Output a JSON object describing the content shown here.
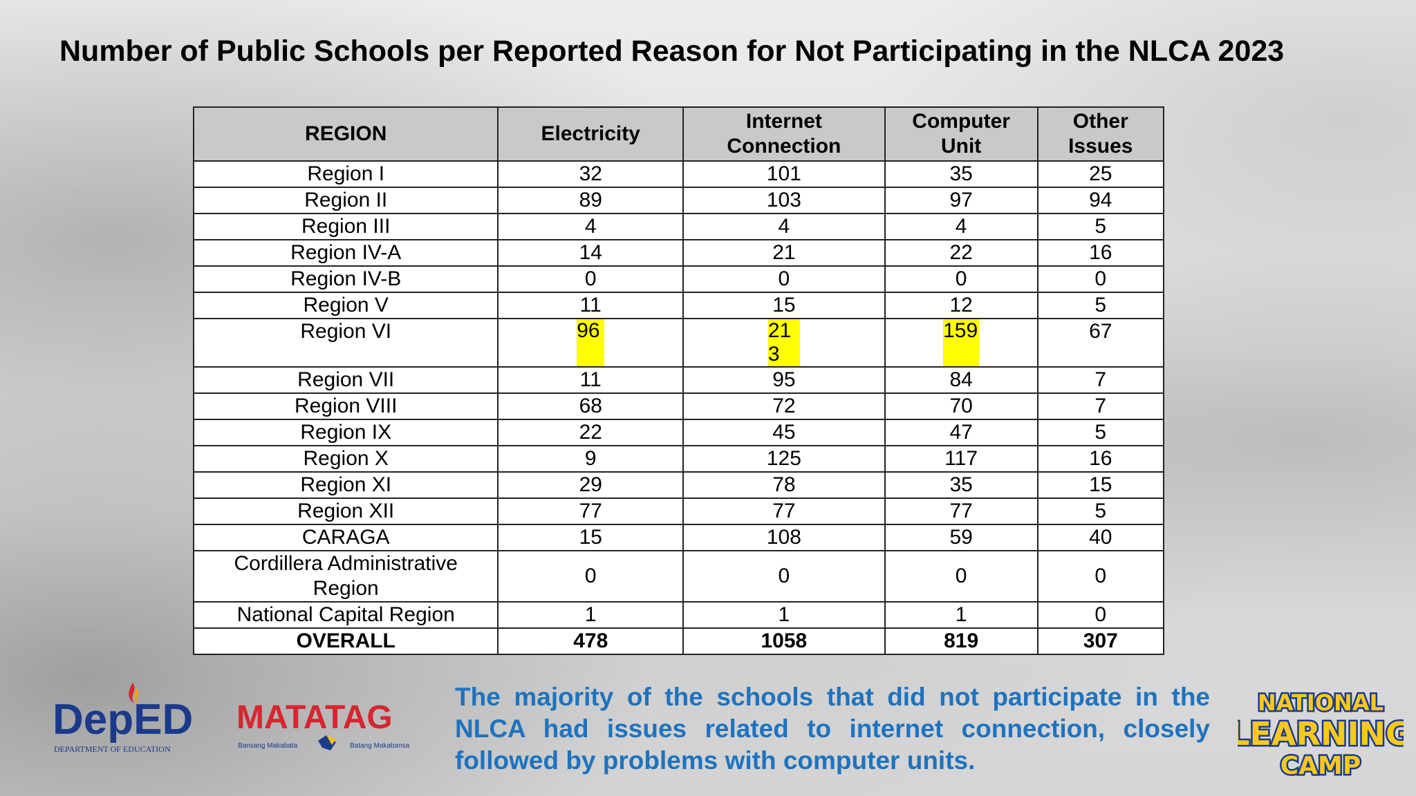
{
  "title": "Number of Public Schools per Reported Reason for Not Participating in the NLCA 2023",
  "table": {
    "headers": [
      "REGION",
      "Electricity",
      "Internet Connection",
      "Computer Unit",
      "Other Issues"
    ],
    "rows": [
      {
        "region": "Region I",
        "electricity": "32",
        "internet": "101",
        "computer": "35",
        "other": "25"
      },
      {
        "region": "Region II",
        "electricity": "89",
        "internet": "103",
        "computer": "97",
        "other": "94"
      },
      {
        "region": "Region III",
        "electricity": "4",
        "internet": "4",
        "computer": "4",
        "other": "5"
      },
      {
        "region": "Region IV-A",
        "electricity": "14",
        "internet": "21",
        "computer": "22",
        "other": "16"
      },
      {
        "region": "Region IV-B",
        "electricity": "0",
        "internet": "0",
        "computer": "0",
        "other": "0"
      },
      {
        "region": "Region V",
        "electricity": "11",
        "internet": "15",
        "computer": "12",
        "other": "5"
      },
      {
        "region": "Region VI",
        "electricity": "96",
        "internet": "213",
        "computer": "159",
        "other": "67"
      },
      {
        "region": "Region VII",
        "electricity": "11",
        "internet": "95",
        "computer": "84",
        "other": "7"
      },
      {
        "region": "Region VIII",
        "electricity": "68",
        "internet": "72",
        "computer": "70",
        "other": "7"
      },
      {
        "region": "Region IX",
        "electricity": "22",
        "internet": "45",
        "computer": "47",
        "other": "5"
      },
      {
        "region": "Region X",
        "electricity": "9",
        "internet": "125",
        "computer": "117",
        "other": "16"
      },
      {
        "region": "Region XI",
        "electricity": "29",
        "internet": "78",
        "computer": "35",
        "other": "15"
      },
      {
        "region": "Region XII",
        "electricity": "77",
        "internet": "77",
        "computer": "77",
        "other": "5"
      },
      {
        "region": "CARAGA",
        "electricity": "15",
        "internet": "108",
        "computer": "59",
        "other": "40"
      },
      {
        "region": "Cordillera Administrative Region",
        "electricity": "0",
        "internet": "0",
        "computer": "0",
        "other": "0"
      },
      {
        "region": "National Capital Region",
        "electricity": "1",
        "internet": "1",
        "computer": "1",
        "other": "0"
      }
    ],
    "overall": {
      "region": "OVERALL",
      "electricity": "478",
      "internet": "1058",
      "computer": "819",
      "other": "307"
    }
  },
  "note": "The majority of the schools that did not participate in the NLCA had issues related to internet connection, closely followed by problems with computer units.",
  "logos": {
    "deped_main": "DepED",
    "deped_sub": "DEPARTMENT OF EDUCATION",
    "matatag_main": "MATATAG",
    "matatag_left": "Bansang Makabata",
    "matatag_right": "Batang Makabansa",
    "nlc_line1": "NATIONAL",
    "nlc_line2": "LEARNING",
    "nlc_line3": "CAMP"
  },
  "colors": {
    "highlight": "#ffff00",
    "note_text": "#1e73be",
    "header_bg": "#c9c9c9",
    "deped_blue": "#1b3a8c",
    "matatag_red": "#d6262f"
  }
}
